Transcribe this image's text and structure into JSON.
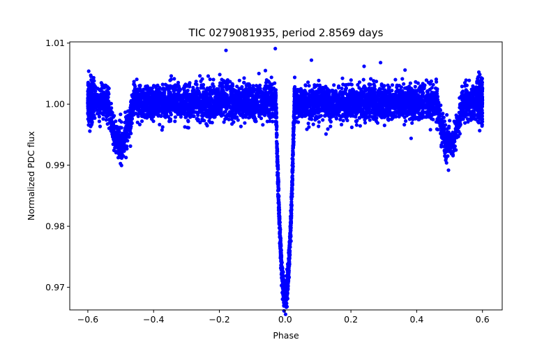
{
  "chart_data": {
    "type": "scatter",
    "title": "TIC 0279081935, period 2.8569 days",
    "xlabel": "Phase",
    "ylabel": "Normalized PDC flux",
    "xlim": [
      -0.655,
      0.66
    ],
    "ylim": [
      0.9663,
      1.0102
    ],
    "grid": false,
    "x_ticks": [
      -0.6,
      -0.4,
      -0.2,
      0.0,
      0.2,
      0.4,
      0.6
    ],
    "x_tick_labels": [
      "−0.6",
      "−0.4",
      "−0.2",
      "0.0",
      "0.2",
      "0.4",
      "0.6"
    ],
    "y_ticks": [
      0.97,
      0.98,
      0.99,
      1.0,
      1.01
    ],
    "y_tick_labels": [
      "0.97",
      "0.98",
      "0.99",
      "1.00",
      "1.01"
    ],
    "marker_color": "#0000ff",
    "x_range_of_points": [
      -0.6,
      0.6
    ],
    "baseline_flux": 1.0003,
    "primary_eclipse": {
      "center_phase": 0.0,
      "min_flux": 0.9685
    },
    "secondary_eclipses": [
      {
        "center_phase": -0.5,
        "min_flux": 0.9935
      },
      {
        "center_phase": 0.5,
        "min_flux": 0.9935
      }
    ],
    "outliers": [
      {
        "x": -0.18,
        "y": 1.0088
      },
      {
        "x": -0.03,
        "y": 1.0091
      },
      {
        "x": 0.08,
        "y": 1.0072
      },
      {
        "x": 0.29,
        "y": 1.0068
      },
      {
        "x": -0.06,
        "y": 1.0055
      },
      {
        "x": 0.24,
        "y": 1.0062
      }
    ]
  }
}
